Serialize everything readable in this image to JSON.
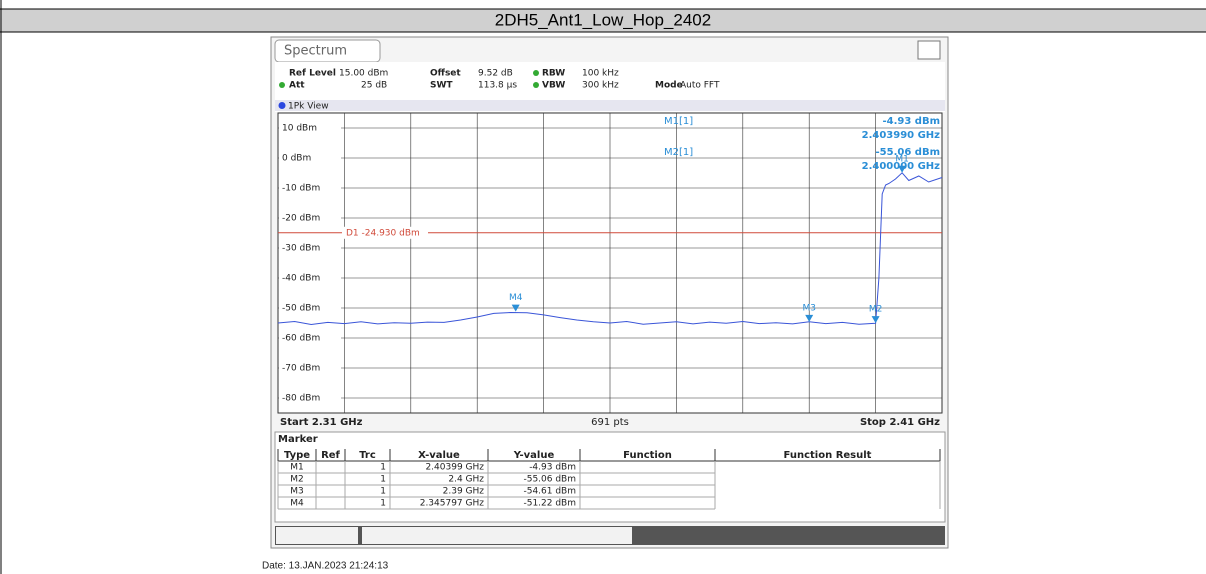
{
  "header": {
    "title": "2DH5_Ant1_Low_Hop_2402"
  },
  "analyzer": {
    "tab": "Spectrum",
    "settings": [
      [
        "Ref Level",
        "15.00 dBm",
        "Offset",
        "9.52 dB",
        "RBW",
        "100 kHz"
      ],
      [
        "Att",
        "25 dB",
        "SWT",
        "113.8 µs",
        "VBW",
        "300 kHz",
        "Mode",
        "Auto FFT"
      ]
    ],
    "view": "1Pk View",
    "readouts": [
      [
        "M1[1]",
        "-4.93 dBm",
        "2.403990 GHz"
      ],
      [
        "M2[1]",
        "-55.06 dBm",
        "2.400000 GHz"
      ]
    ],
    "start_label": "Start 2.31 GHz",
    "points_label": "691 pts",
    "stop_label": "Stop 2.41 GHz"
  },
  "chart_data": {
    "type": "line",
    "ylim": [
      -85,
      15
    ],
    "yticks": [
      {
        "value": 10,
        "label": "10 dBm"
      },
      {
        "value": 0,
        "label": "0 dBm"
      },
      {
        "value": -10,
        "label": "-10 dBm"
      },
      {
        "value": -20,
        "label": "-20 dBm"
      },
      {
        "value": -30,
        "label": "-30 dBm"
      },
      {
        "value": -40,
        "label": "-40 dBm"
      },
      {
        "value": -50,
        "label": "-50 dBm"
      },
      {
        "value": -60,
        "label": "-60 dBm"
      },
      {
        "value": -70,
        "label": "-70 dBm"
      },
      {
        "value": -80,
        "label": "-80 dBm"
      }
    ],
    "xlim": [
      2.31,
      2.41
    ],
    "xticks": [
      2.31,
      2.32,
      2.33,
      2.34,
      2.35,
      2.36,
      2.37,
      2.38,
      2.39,
      2.4,
      2.41
    ],
    "grid": true,
    "x": [
      2.31,
      2.3125,
      2.315,
      2.3175,
      2.32,
      2.3225,
      2.325,
      2.3275,
      2.33,
      2.3325,
      2.335,
      2.3375,
      2.34,
      2.3425,
      2.345,
      2.3475,
      2.35,
      2.3525,
      2.355,
      2.3575,
      2.36,
      2.3625,
      2.365,
      2.3675,
      2.37,
      2.3725,
      2.375,
      2.3775,
      2.38,
      2.3825,
      2.385,
      2.3875,
      2.39,
      2.3925,
      2.395,
      2.3975,
      2.4,
      2.4005,
      2.401,
      2.4015,
      2.402,
      2.403,
      2.40399,
      2.405,
      2.4065,
      2.408,
      2.41
    ],
    "series": [
      {
        "color": "#3a55d8",
        "values": [
          -55,
          -54.5,
          -55.5,
          -54.8,
          -55.2,
          -54.6,
          -55.3,
          -54.9,
          -55.1,
          -54.7,
          -54.8,
          -54,
          -53,
          -51.8,
          -51.5,
          -51.6,
          -52.3,
          -53.2,
          -54,
          -54.6,
          -55,
          -54.5,
          -55.4,
          -55,
          -54.6,
          -55.3,
          -54.7,
          -55.1,
          -54.5,
          -55.2,
          -54.9,
          -55.3,
          -54.6,
          -55.2,
          -54.8,
          -55.4,
          -55.1,
          -40,
          -12,
          -9,
          -8.5,
          -7,
          -4.93,
          -7.5,
          -6,
          -8,
          -6.5
        ]
      }
    ],
    "display_line": {
      "label": "D1 -24.930 dBm",
      "value": -24.93,
      "color": "#d04a3a"
    },
    "markers": [
      {
        "name": "M1",
        "x": 2.40399,
        "y": -4.93
      },
      {
        "name": "M2",
        "x": 2.4,
        "y": -55.06
      },
      {
        "name": "M3",
        "x": 2.39,
        "y": -54.61
      },
      {
        "name": "M4",
        "x": 2.345797,
        "y": -51.22
      }
    ]
  },
  "marker_table": {
    "title": "Marker",
    "columns": [
      "Type",
      "Ref",
      "Trc",
      "X-value",
      "Y-value",
      "Function",
      "Function Result"
    ],
    "rows": [
      [
        "M1",
        "",
        "1",
        "2.40399 GHz",
        "-4.93 dBm",
        "",
        ""
      ],
      [
        "M2",
        "",
        "1",
        "2.4 GHz",
        "-55.06 dBm",
        "",
        ""
      ],
      [
        "M3",
        "",
        "1",
        "2.39 GHz",
        "-54.61 dBm",
        "",
        ""
      ],
      [
        "M4",
        "",
        "1",
        "2.345797 GHz",
        "-51.22 dBm",
        "",
        ""
      ]
    ]
  },
  "footer": {
    "date": "Date: 13.JAN.2023  21:24:13"
  }
}
